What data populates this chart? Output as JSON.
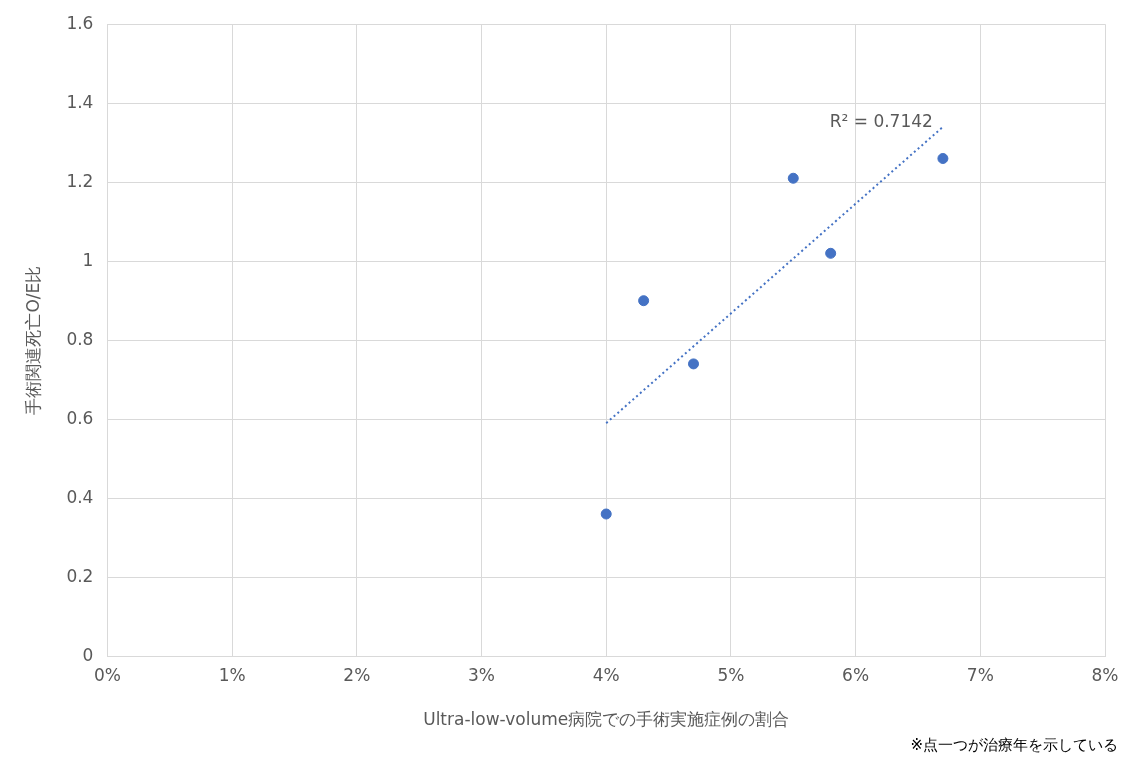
{
  "chart_data": {
    "type": "scatter",
    "xlabel": "Ultra-low-volume病院での手術実施症例の割合",
    "ylabel": "手術関連死亡O/E比",
    "xlim": [
      0,
      8
    ],
    "xticks": [
      {
        "value": 0,
        "label": "0%"
      },
      {
        "value": 1,
        "label": "1%"
      },
      {
        "value": 2,
        "label": "2%"
      },
      {
        "value": 3,
        "label": "3%"
      },
      {
        "value": 4,
        "label": "4%"
      },
      {
        "value": 5,
        "label": "5%"
      },
      {
        "value": 6,
        "label": "6%"
      },
      {
        "value": 7,
        "label": "7%"
      },
      {
        "value": 8,
        "label": "8%"
      }
    ],
    "ylim": [
      0,
      1.6
    ],
    "yticks": [
      0,
      0.2,
      0.4,
      0.6,
      0.8,
      1,
      1.2,
      1.4,
      1.6
    ],
    "grid": true,
    "legend": false,
    "series": [
      {
        "color": "#4472c4",
        "marker": "circle",
        "x": [
          4.0,
          4.3,
          4.7,
          5.5,
          5.8,
          6.7
        ],
        "values": [
          0.36,
          0.9,
          0.74,
          1.21,
          1.02,
          1.26
        ]
      },
      {
        "type": "line",
        "color": "#4472c4",
        "marker": "none",
        "line_style": "dotted",
        "x": [
          4.0,
          6.7
        ],
        "values": [
          0.59,
          1.34
        ]
      }
    ],
    "annotations": [
      "R² = 0.7142",
      "※点一つが治療年を示している"
    ]
  }
}
